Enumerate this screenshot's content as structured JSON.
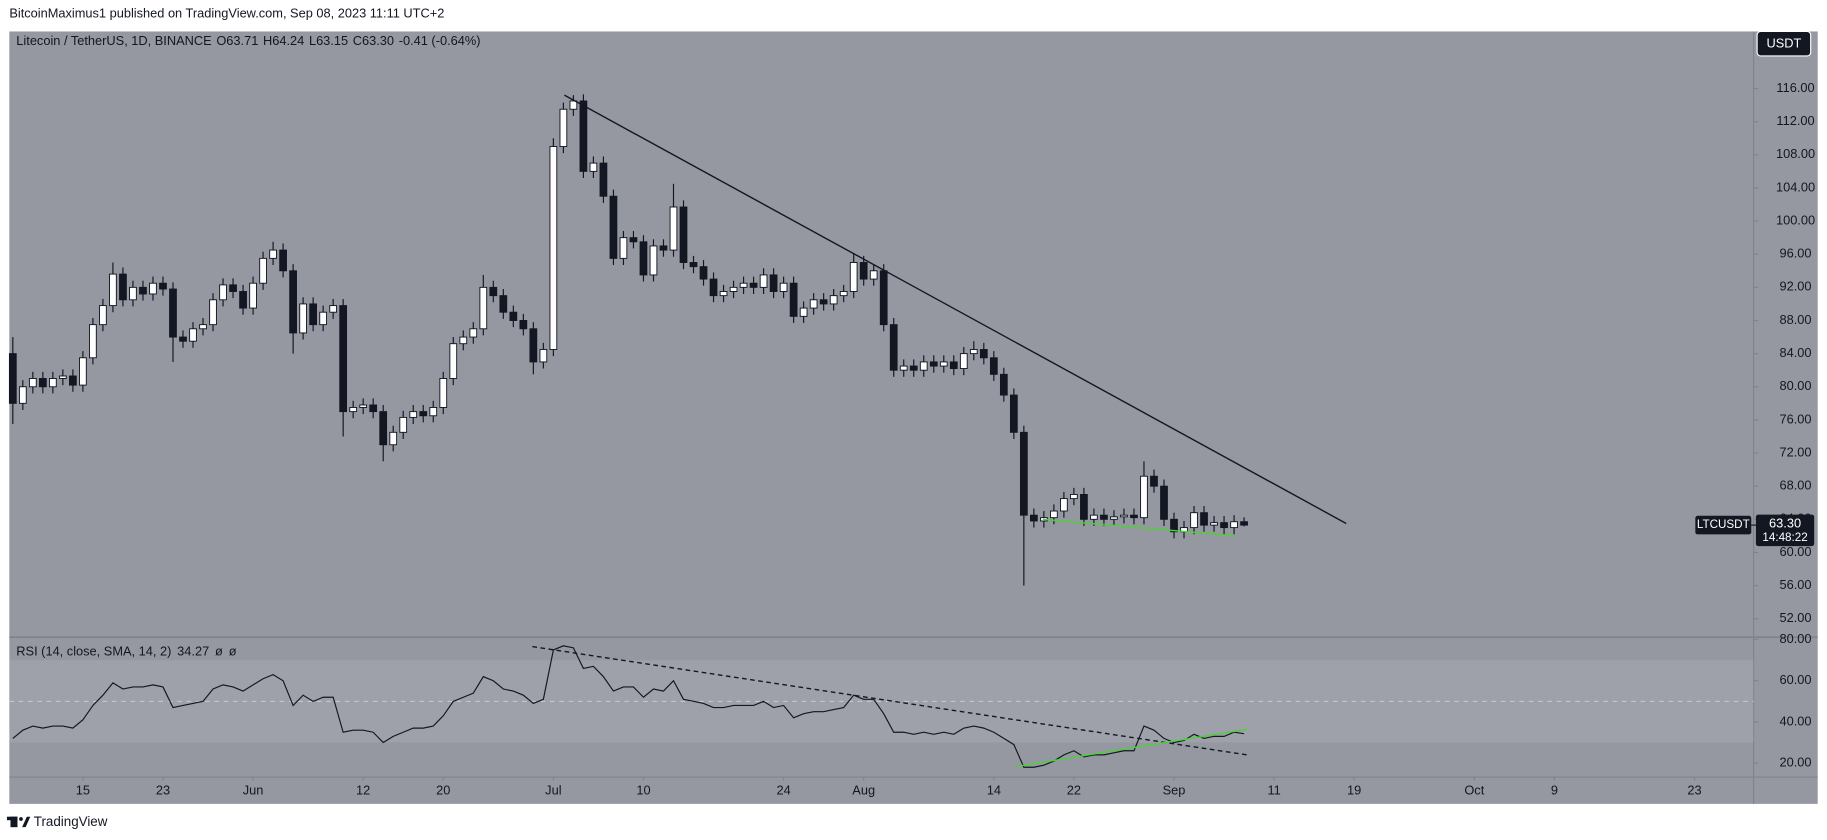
{
  "header": {
    "published": "BitcoinMaximus1 published on TradingView.com, Sep 08, 2023 11:11 UTC+2"
  },
  "footer": {
    "brand": "TradingView"
  },
  "chart_data": {
    "type": "candlestick",
    "title": "Litecoin / TetherUS, 1D, BINANCE",
    "ohlc_labels": [
      "O",
      "H",
      "L",
      "C"
    ],
    "change": "-0.41 (-0.64%)",
    "currency": "USDT",
    "symbol": "LTCUSDT",
    "countdown": "14:48:22",
    "last_price": {
      "value": 63.3,
      "label": "63.30"
    },
    "up_color": "#ffffff",
    "down_color": "#131722",
    "wick_color": "#131722",
    "open": [
      84,
      78,
      80,
      81,
      80,
      81,
      81.3,
      80.2,
      83.5,
      87.5,
      89.8,
      93.6,
      90.5,
      92,
      91.2,
      92.5,
      91.8,
      86,
      85.5,
      87,
      87.5,
      90.5,
      92.3,
      91.5,
      89.5,
      92.5,
      95.5,
      96.5,
      94,
      86.5,
      90,
      87.5,
      89,
      89.8,
      77,
      77.5,
      77.8,
      77,
      73,
      74.5,
      76.3,
      77,
      76.5,
      77.5,
      81,
      85.2,
      86,
      87,
      92,
      91,
      89,
      88,
      87,
      83,
      84.5,
      109,
      113.5,
      114.5,
      106,
      107,
      103,
      95.5,
      98,
      97.5,
      93.5,
      97,
      96.5,
      101.7,
      95,
      94.5,
      93,
      91,
      91.5,
      92,
      92.5,
      92,
      93.5,
      91.5,
      92.5,
      88.5,
      89.5,
      90.5,
      90,
      91,
      91.5,
      95,
      93,
      94,
      87.5,
      82,
      82.5,
      82,
      83,
      82.5,
      83,
      82.2,
      84,
      84.5,
      83.5,
      81.5,
      79,
      74.5,
      64.5,
      63.8,
      64.2,
      65,
      66.5,
      67,
      64,
      64.5,
      64,
      64.3,
      64.5,
      64.2,
      69.2,
      68,
      64,
      62.5,
      63,
      64.8,
      63.3,
      63.6,
      63,
      63.71
    ],
    "high": [
      86,
      80.8,
      81.8,
      81.8,
      81.8,
      82.1,
      82.1,
      84.3,
      88.3,
      90.6,
      95,
      94.4,
      92.8,
      92.8,
      93.3,
      93.3,
      92.6,
      86.8,
      87.8,
      88.3,
      91.3,
      93.1,
      93.1,
      92.3,
      93.3,
      96.3,
      97.5,
      97.3,
      94.8,
      90.8,
      90.8,
      89.8,
      90.6,
      90.6,
      78.3,
      78.6,
      78.6,
      77.8,
      75.3,
      77.1,
      77.8,
      77.8,
      78.3,
      81.8,
      86,
      86.8,
      87.8,
      93.5,
      92.8,
      91.8,
      89.8,
      88.8,
      87.8,
      85.3,
      110,
      114.3,
      115.2,
      115.3,
      107.8,
      107.8,
      103.8,
      98.8,
      98.8,
      98.3,
      97.8,
      97.8,
      104.5,
      102.5,
      95.8,
      95.3,
      93.8,
      92.3,
      92.8,
      93.3,
      93.3,
      94.3,
      94.3,
      93.3,
      93.3,
      90.3,
      91.3,
      91.3,
      91.8,
      92.3,
      96,
      95.8,
      94.8,
      94.8,
      88.3,
      83.3,
      83.3,
      83.8,
      83.8,
      83.8,
      83.8,
      84.8,
      85.5,
      85.3,
      84.3,
      82.3,
      79.8,
      75.3,
      65.3,
      65,
      65.8,
      67.3,
      67.8,
      67.8,
      65.3,
      65.3,
      65.1,
      65.3,
      65.3,
      71,
      70,
      68.8,
      64.8,
      63.8,
      65.6,
      65.6,
      64.4,
      64.4,
      64.5,
      64.24
    ],
    "low": [
      75.5,
      77.2,
      79.2,
      79.2,
      79.2,
      80.2,
      79.4,
      79.4,
      82.7,
      86.7,
      89,
      89.7,
      89.7,
      90.4,
      90.4,
      91,
      83,
      84.7,
      84.7,
      86.2,
      86.7,
      89.7,
      90.7,
      88.7,
      88.7,
      91.7,
      94.7,
      93.2,
      84,
      85.7,
      86.7,
      86.7,
      88.2,
      74,
      76.2,
      76.7,
      76.2,
      71,
      72.2,
      73.7,
      75.5,
      75.7,
      75.7,
      76.7,
      80.2,
      84.4,
      85.2,
      86.2,
      90.2,
      88.2,
      87.2,
      86.2,
      81.5,
      82.2,
      83.7,
      108.2,
      112.7,
      105.2,
      105.2,
      102.2,
      94.7,
      94.7,
      96.7,
      92.7,
      92.7,
      95.7,
      95.7,
      94.2,
      93.7,
      92.2,
      90.2,
      90.2,
      90.7,
      91.2,
      91.2,
      91.2,
      90.7,
      90.7,
      87.7,
      87.7,
      88.7,
      89.2,
      89.2,
      90.2,
      90.7,
      92.2,
      92.2,
      86.7,
      81.2,
      81.2,
      81.2,
      81.2,
      81.7,
      81.7,
      81.4,
      81.4,
      83.2,
      82.7,
      80.7,
      78.2,
      73.7,
      56,
      63,
      63,
      63.4,
      64.2,
      65.7,
      63.2,
      63.2,
      63.2,
      63.2,
      63.5,
      63.4,
      63.4,
      67.2,
      63.2,
      61.7,
      61.7,
      62.2,
      62.5,
      62.5,
      62.2,
      62.2,
      63.15
    ],
    "close": [
      78,
      80,
      81,
      80,
      81,
      81.3,
      80.2,
      83.5,
      87.5,
      89.8,
      93.6,
      90.5,
      92,
      91.2,
      92.5,
      91.8,
      86,
      85.5,
      87,
      87.5,
      90.5,
      92.3,
      91.5,
      89.5,
      92.5,
      95.5,
      96.5,
      94,
      86.5,
      90,
      87.5,
      89,
      89.8,
      77,
      77.5,
      77.8,
      77,
      73,
      74.5,
      76.3,
      77,
      76.5,
      77.5,
      81,
      85.2,
      86,
      87,
      92,
      91,
      89,
      88,
      87,
      83,
      84.5,
      109,
      113.5,
      114.5,
      106,
      107,
      103,
      95.5,
      98,
      97.5,
      93.5,
      97,
      96.5,
      101.7,
      95,
      94.5,
      93,
      91,
      91.5,
      92,
      92.5,
      92,
      93.5,
      91.5,
      92.5,
      88.5,
      89.5,
      90.5,
      90,
      91,
      91.5,
      95,
      93,
      94,
      87.5,
      82,
      82.5,
      82,
      83,
      82.5,
      83,
      82.2,
      84,
      84.5,
      83.5,
      81.5,
      79,
      74.5,
      64.5,
      63.8,
      64.2,
      65,
      66.5,
      67,
      64,
      64.5,
      64,
      64.3,
      64.5,
      64.2,
      69.2,
      68,
      64,
      62.5,
      63,
      64.8,
      63.3,
      63.6,
      63,
      63.71,
      63.3
    ],
    "xlim": [
      -0.35,
      173.9
    ],
    "xticks": [
      {
        "value": 7,
        "label": "15"
      },
      {
        "value": 15,
        "label": "23"
      },
      {
        "value": 24,
        "label": "Jun"
      },
      {
        "value": 35,
        "label": "12"
      },
      {
        "value": 43,
        "label": "20"
      },
      {
        "value": 54,
        "label": "Jul"
      },
      {
        "value": 63,
        "label": "10"
      },
      {
        "value": 77,
        "label": "24"
      },
      {
        "value": 85,
        "label": "Aug"
      },
      {
        "value": 98,
        "label": "14"
      },
      {
        "value": 106,
        "label": "22"
      },
      {
        "value": 116,
        "label": "Sep"
      },
      {
        "value": 126,
        "label": "11"
      },
      {
        "value": 134,
        "label": "19"
      },
      {
        "value": 146,
        "label": "Oct"
      },
      {
        "value": 154,
        "label": "9"
      },
      {
        "value": 168,
        "label": "23"
      }
    ],
    "ylim": [
      49.76,
      122.89
    ],
    "yticks": [
      {
        "value": 52,
        "label": "52.00"
      },
      {
        "value": 56,
        "label": "56.00"
      },
      {
        "value": 60,
        "label": "60.00"
      },
      {
        "value": 64,
        "label": "64.00"
      },
      {
        "value": 68,
        "label": "68.00"
      },
      {
        "value": 72,
        "label": "72.00"
      },
      {
        "value": 76,
        "label": "76.00"
      },
      {
        "value": 80,
        "label": "80.00"
      },
      {
        "value": 84,
        "label": "84.00"
      },
      {
        "value": 88,
        "label": "88.00"
      },
      {
        "value": 92,
        "label": "92.00"
      },
      {
        "value": 96,
        "label": "96.00"
      },
      {
        "value": 100,
        "label": "100.00"
      },
      {
        "value": 104,
        "label": "104.00"
      },
      {
        "value": 108,
        "label": "108.00"
      },
      {
        "value": 112,
        "label": "112.00"
      },
      {
        "value": 116,
        "label": "116.00"
      }
    ],
    "trendlines": [
      {
        "pane": "price",
        "color": "#131722",
        "dash": false,
        "points": [
          [
            55.1,
            115.2
          ],
          [
            133.2,
            63.5
          ]
        ]
      },
      {
        "pane": "price",
        "color": "#4cd137",
        "dash": false,
        "points": [
          [
            102.9,
            64.0
          ],
          [
            122.1,
            62.0
          ]
        ]
      },
      {
        "pane": "rsi",
        "color": "#131722",
        "dash": true,
        "points": [
          [
            51.9,
            76.6
          ],
          [
            123.3,
            24.0
          ]
        ]
      },
      {
        "pane": "rsi",
        "color": "#4cd137",
        "dash": false,
        "points": [
          [
            100.2,
            18.3
          ],
          [
            123.3,
            36.4
          ]
        ]
      }
    ],
    "rsi": {
      "title": "RSI (14, close, SMA, 14, 2)",
      "extra": [
        "ø",
        "ø"
      ],
      "color": "#131722",
      "band": [
        30,
        70
      ],
      "midline": 50,
      "ylim": [
        13.21,
        81.13
      ],
      "yticks": [
        {
          "value": 20,
          "label": "20.00"
        },
        {
          "value": 40,
          "label": "40.00"
        },
        {
          "value": 60,
          "label": "60.00"
        },
        {
          "value": 80,
          "label": "80.00"
        }
      ],
      "values": [
        32,
        36,
        38,
        37,
        38,
        38,
        37,
        41,
        48,
        53,
        59,
        56,
        57,
        57,
        58,
        57,
        47,
        48,
        49,
        50,
        56,
        58,
        57,
        55,
        58,
        61,
        63,
        60,
        48,
        53,
        50,
        52,
        52,
        35,
        36,
        36,
        35,
        30,
        33,
        35,
        37,
        37,
        38,
        43,
        50,
        52,
        54,
        62,
        60,
        56,
        55,
        53,
        49,
        51,
        75,
        77,
        76,
        66,
        67,
        62,
        55,
        57,
        57,
        52,
        56,
        55,
        60,
        51,
        50,
        49,
        47,
        47,
        48,
        48,
        48,
        50,
        47,
        48,
        42,
        44,
        45,
        45,
        46,
        47,
        53,
        51,
        51,
        44,
        35,
        35,
        34,
        35,
        34,
        35,
        34,
        37,
        38,
        37,
        35,
        32,
        29,
        18,
        18,
        19,
        21,
        24,
        26,
        23,
        24,
        24,
        25,
        26,
        26,
        38,
        36,
        32,
        30,
        31,
        34,
        32,
        33,
        33,
        35,
        34.27
      ]
    }
  }
}
